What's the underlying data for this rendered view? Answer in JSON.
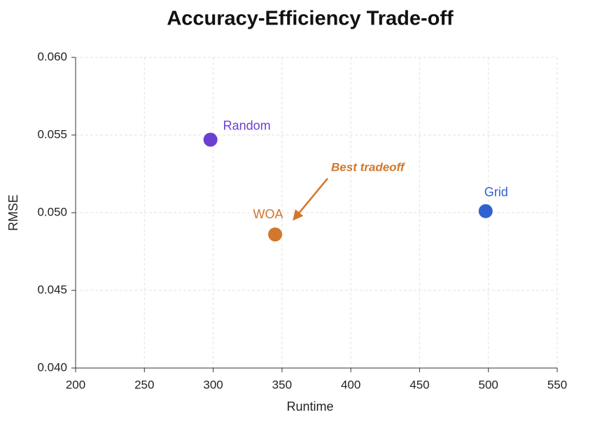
{
  "chart_data": {
    "type": "scatter",
    "title": "Accuracy-Efficiency Trade-off",
    "x_label": "Runtime",
    "y_label": "RMSE",
    "xlim": [
      200,
      550
    ],
    "xticks": [
      200,
      250,
      300,
      350,
      400,
      450,
      500,
      550
    ],
    "ylim": [
      0.04,
      0.06
    ],
    "yticks": [
      {
        "value": 0.04,
        "label": "0.040"
      },
      0.045,
      {
        "value": 0.05,
        "label": "0.050"
      },
      0.055,
      {
        "value": 0.06,
        "label": "0.060"
      }
    ],
    "grid": true,
    "series": [
      {
        "name": "Random",
        "color": "#6b3fd2",
        "x": [
          298
        ],
        "values": [
          0.0547
        ]
      },
      {
        "name": "WOA",
        "color": "#d2772b",
        "x": [
          345
        ],
        "values": [
          0.0486
        ]
      },
      {
        "name": "Grid",
        "color": "#2f62d0",
        "x": [
          498
        ],
        "values": [
          0.0501
        ]
      }
    ],
    "annotation": {
      "text": "Best tradeoff",
      "color": "#d2772b"
    }
  }
}
